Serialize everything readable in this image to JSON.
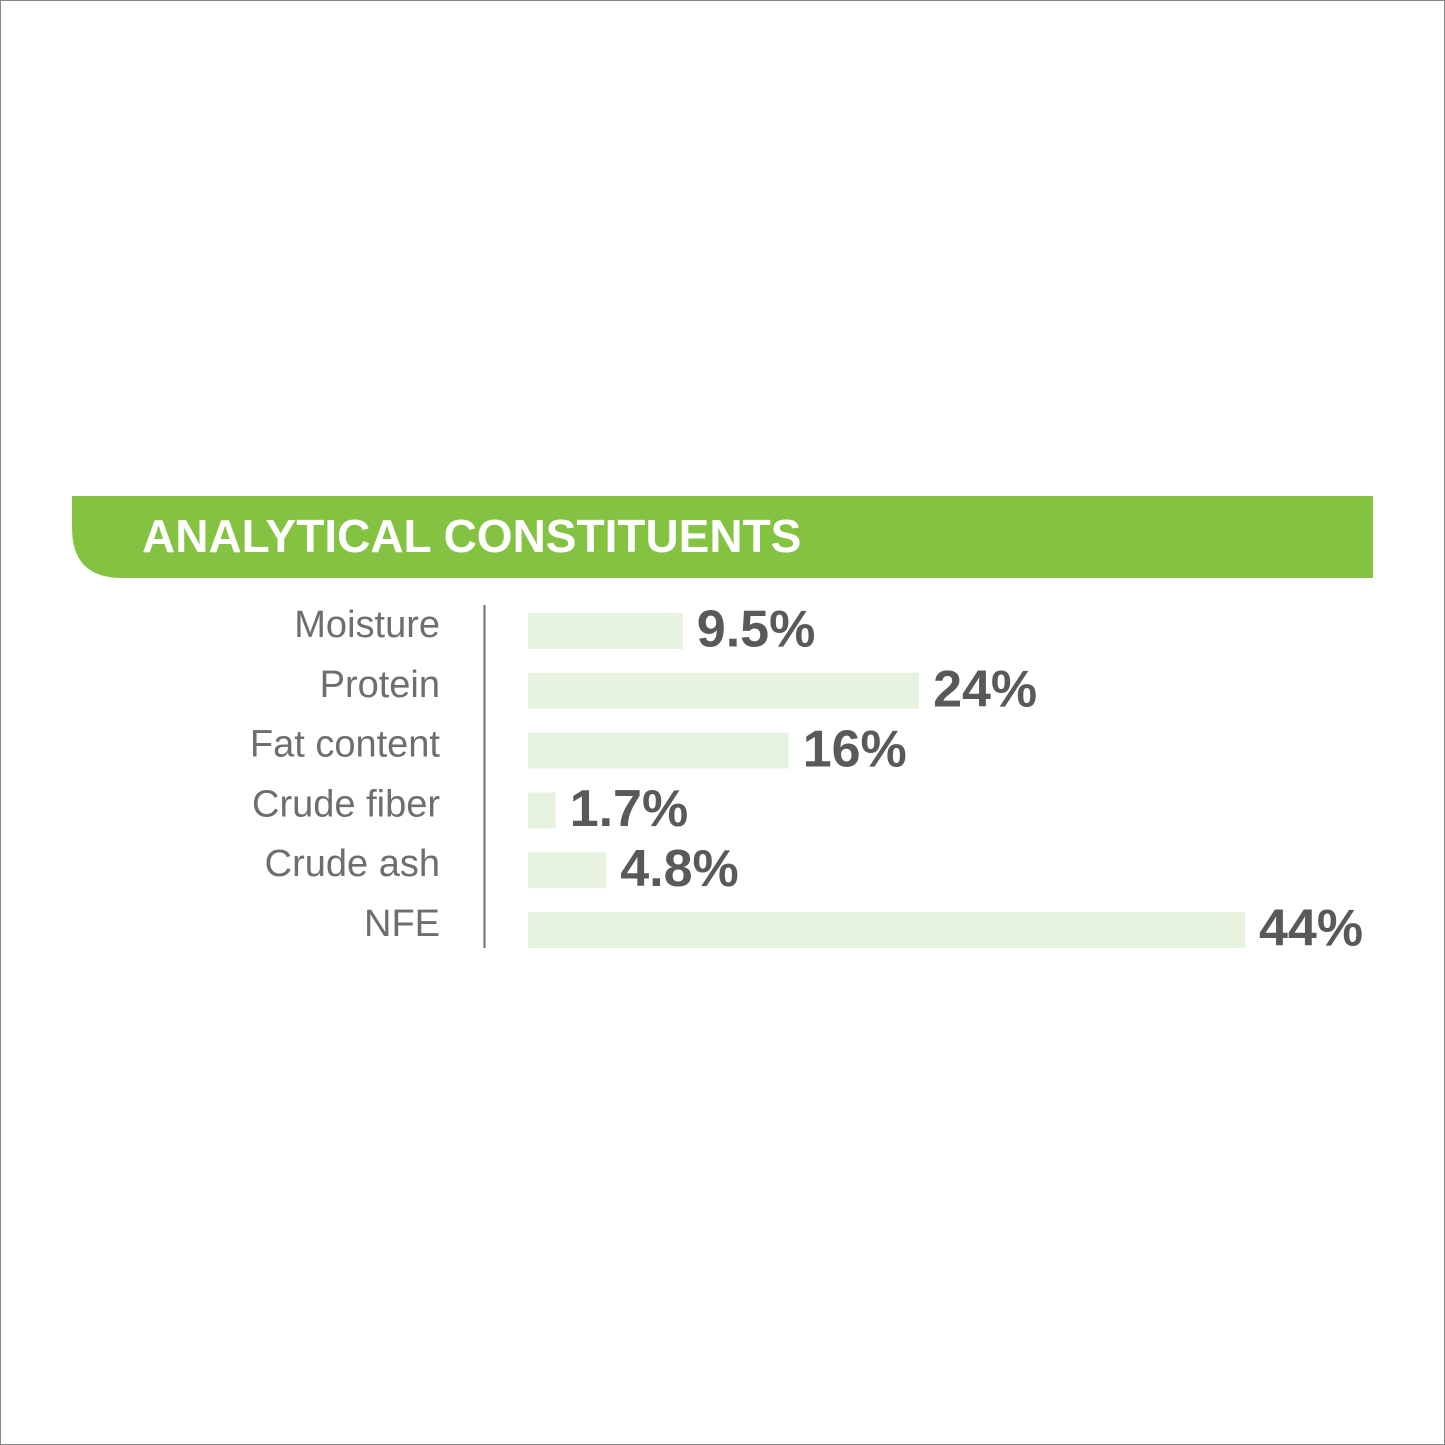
{
  "chart_data": {
    "type": "bar",
    "orientation": "horizontal",
    "title": "ANALYTICAL CONSTITUENTS",
    "categories": [
      "Moisture",
      "Protein",
      "Fat content",
      "Crude fiber",
      "Crude ash",
      "NFE"
    ],
    "values": [
      9.5,
      24,
      16,
      1.7,
      4.8,
      44
    ],
    "value_labels": [
      "9.5%",
      "24%",
      "16%",
      "1.7%",
      "4.8%",
      "44%"
    ],
    "color": "#e8f3df"
  }
}
